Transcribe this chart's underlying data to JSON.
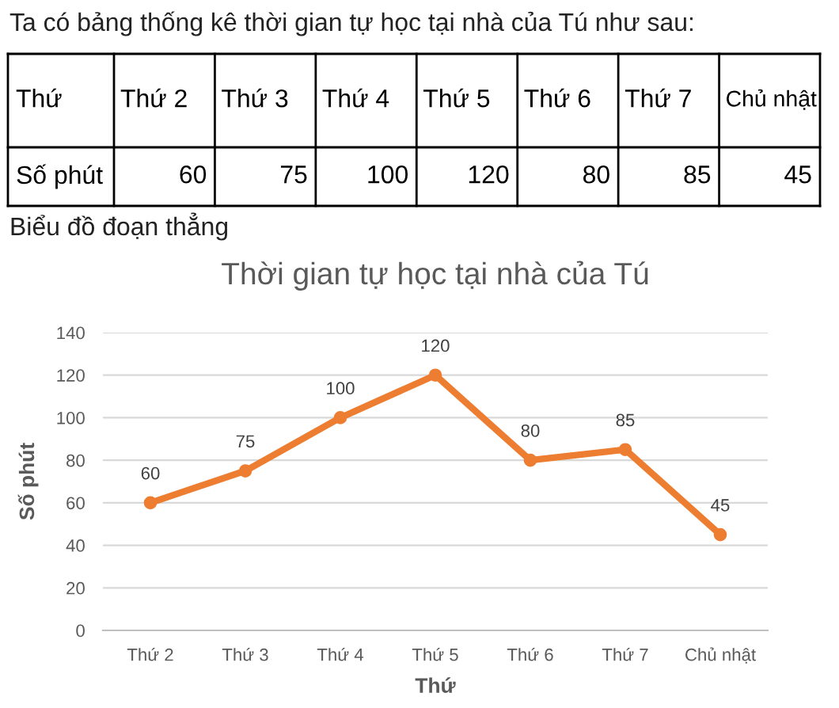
{
  "chart_data": [
    {
      "type": "other",
      "title": "Ta có bảng thống kê thời gian tự học tại nhà của Tú như sau:",
      "xlabel": "Thứ",
      "ylabel": "Số phút",
      "categories": [
        "Thứ 2",
        "Thứ 3",
        "Thứ 4",
        "Thứ 5",
        "Thứ 6",
        "Thứ 7",
        "Chủ nhật"
      ],
      "values": [
        60,
        75,
        100,
        120,
        80,
        85,
        45
      ],
      "data_labels": true
    },
    {
      "type": "line",
      "title": "Thời gian tự học tại nhà của Tú",
      "xlabel": "Thứ",
      "ylabel": "Số phút",
      "annotations": [
        "Biểu đồ đoạn thẳng"
      ],
      "categories": [
        "Thứ 2",
        "Thứ 3",
        "Thứ 4",
        "Thứ 5",
        "Thứ 6",
        "Thứ 7",
        "Chủ nhật"
      ],
      "series": [
        {
          "color": "#ed7d31",
          "values": [
            60,
            75,
            100,
            120,
            80,
            85,
            45
          ]
        }
      ],
      "ylim": [
        0,
        140
      ],
      "yticks": [
        0,
        20,
        40,
        60,
        80,
        100,
        120,
        140
      ],
      "grid": "y",
      "marker": "circle",
      "line_style": "solid",
      "data_labels": true
    }
  ]
}
